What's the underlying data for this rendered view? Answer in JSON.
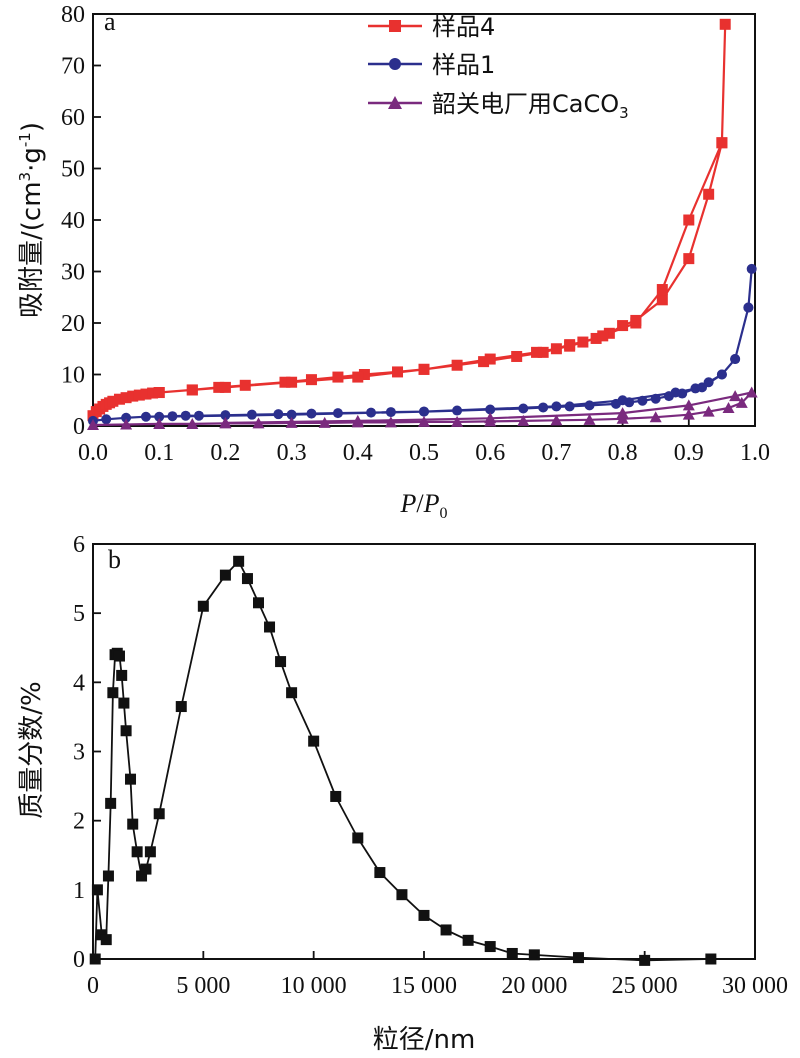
{
  "chart_data": [
    {
      "type": "line",
      "panel_label": "a",
      "xlabel": {
        "italic_main": "P",
        "separator": "/",
        "italic_main2": "P",
        "subscript": "0"
      },
      "ylabel": {
        "text": "吸附量/(cm",
        "sup1": "3",
        "mid": "·g",
        "sup2": "-1",
        "end": ")"
      },
      "xlim": [
        0,
        1.0
      ],
      "ylim": [
        0,
        80
      ],
      "xticks": [
        "0.0",
        "0.1",
        "0.2",
        "0.3",
        "0.4",
        "0.5",
        "0.6",
        "0.7",
        "0.8",
        "0.9",
        "1.0"
      ],
      "yticks": [
        "0",
        "10",
        "20",
        "30",
        "40",
        "50",
        "60",
        "70",
        "80"
      ],
      "legend_position": "top-center",
      "series": [
        {
          "name": "样品4",
          "color": "#e8312f",
          "marker": "square",
          "x": [
            0.0,
            0.005,
            0.01,
            0.015,
            0.02,
            0.025,
            0.03,
            0.04,
            0.05,
            0.06,
            0.07,
            0.08,
            0.09,
            0.1,
            0.15,
            0.19,
            0.23,
            0.29,
            0.33,
            0.37,
            0.41,
            0.46,
            0.5,
            0.55,
            0.59,
            0.64,
            0.68,
            0.7,
            0.72,
            0.74,
            0.76,
            0.78,
            0.8,
            0.82,
            0.86,
            0.9,
            0.93,
            0.95,
            0.955,
            0.95,
            0.9,
            0.86,
            0.82,
            0.77,
            0.72,
            0.67,
            0.6,
            0.5,
            0.4,
            0.3,
            0.2,
            0.15,
            0.1
          ],
          "y": [
            2.0,
            2.8,
            3.3,
            3.8,
            4.2,
            4.5,
            4.8,
            5.2,
            5.5,
            5.8,
            6.0,
            6.2,
            6.4,
            6.5,
            7.0,
            7.5,
            7.9,
            8.5,
            9.0,
            9.5,
            10.0,
            10.5,
            11.0,
            11.8,
            12.5,
            13.5,
            14.3,
            15.0,
            15.8,
            16.3,
            17.0,
            18.0,
            19.5,
            20.5,
            24.5,
            32.5,
            45.0,
            55.0,
            78.0,
            55.0,
            40.0,
            26.5,
            20.0,
            17.5,
            15.5,
            14.3,
            13.0,
            11.0,
            9.5,
            8.5,
            7.5,
            7.0,
            6.5
          ]
        },
        {
          "name": "样品1",
          "color": "#2b2f8d",
          "marker": "circle",
          "x": [
            0.0,
            0.02,
            0.05,
            0.08,
            0.12,
            0.14,
            0.16,
            0.2,
            0.24,
            0.28,
            0.33,
            0.37,
            0.42,
            0.45,
            0.5,
            0.55,
            0.6,
            0.65,
            0.68,
            0.72,
            0.75,
            0.79,
            0.81,
            0.83,
            0.85,
            0.87,
            0.89,
            0.91,
            0.93,
            0.95,
            0.97,
            0.99,
            0.995,
            0.99,
            0.97,
            0.95,
            0.92,
            0.88,
            0.8,
            0.7,
            0.5,
            0.3,
            0.1
          ],
          "y": [
            1.0,
            1.3,
            1.6,
            1.8,
            1.9,
            2.0,
            2.0,
            2.1,
            2.2,
            2.3,
            2.4,
            2.5,
            2.6,
            2.7,
            2.8,
            3.0,
            3.2,
            3.4,
            3.6,
            3.8,
            4.0,
            4.3,
            4.6,
            4.9,
            5.3,
            5.8,
            6.3,
            7.3,
            8.5,
            10.0,
            13.0,
            23.0,
            30.5,
            23.0,
            13.0,
            10.0,
            7.5,
            6.5,
            5.0,
            3.8,
            2.8,
            2.2,
            1.8
          ]
        },
        {
          "name": "韶关电厂用CaCO",
          "name_sub": "3",
          "color": "#7a2a7e",
          "marker": "triangle",
          "x": [
            0.0,
            0.05,
            0.1,
            0.15,
            0.2,
            0.25,
            0.3,
            0.35,
            0.4,
            0.45,
            0.5,
            0.55,
            0.6,
            0.65,
            0.7,
            0.75,
            0.8,
            0.85,
            0.9,
            0.93,
            0.96,
            0.98,
            0.995,
            0.97,
            0.9,
            0.8,
            0.6,
            0.4,
            0.2
          ],
          "y": [
            0.2,
            0.3,
            0.4,
            0.4,
            0.5,
            0.5,
            0.6,
            0.6,
            0.7,
            0.7,
            0.8,
            0.8,
            0.9,
            1.0,
            1.1,
            1.2,
            1.4,
            1.7,
            2.2,
            2.8,
            3.5,
            4.5,
            6.5,
            5.8,
            4.0,
            2.5,
            1.5,
            1.0,
            0.6
          ]
        }
      ]
    },
    {
      "type": "line",
      "panel_label": "b",
      "xlabel": "粒径/nm",
      "ylabel": "质量分数/%",
      "xlim": [
        0,
        30000
      ],
      "ylim": [
        0,
        6
      ],
      "xtick_values": [
        0,
        5000,
        10000,
        15000,
        20000,
        25000,
        30000
      ],
      "xticks": [
        "0",
        "5 000",
        "10 000",
        "15 000",
        "20 000",
        "25 000",
        "30 000"
      ],
      "yticks": [
        "0",
        "1",
        "2",
        "3",
        "4",
        "5",
        "6"
      ],
      "series": [
        {
          "color": "#111111",
          "marker": "square",
          "x": [
            100,
            200,
            400,
            600,
            700,
            800,
            900,
            1000,
            1100,
            1200,
            1300,
            1400,
            1500,
            1700,
            1800,
            2000,
            2200,
            2400,
            2600,
            3000,
            4000,
            5000,
            6000,
            6600,
            7000,
            7500,
            8000,
            8500,
            9000,
            10000,
            11000,
            12000,
            13000,
            14000,
            15000,
            16000,
            17000,
            18000,
            19000,
            20000,
            22000,
            25000,
            28000
          ],
          "y": [
            0.0,
            1.0,
            0.35,
            0.28,
            1.2,
            2.25,
            3.85,
            4.4,
            4.42,
            4.38,
            4.1,
            3.7,
            3.3,
            2.6,
            1.95,
            1.55,
            1.2,
            1.3,
            1.55,
            2.1,
            3.65,
            5.1,
            5.55,
            5.75,
            5.5,
            5.15,
            4.8,
            4.3,
            3.85,
            3.15,
            2.35,
            1.75,
            1.25,
            0.93,
            0.63,
            0.42,
            0.27,
            0.18,
            0.08,
            0.06,
            0.02,
            -0.02,
            0.0
          ]
        }
      ]
    }
  ]
}
